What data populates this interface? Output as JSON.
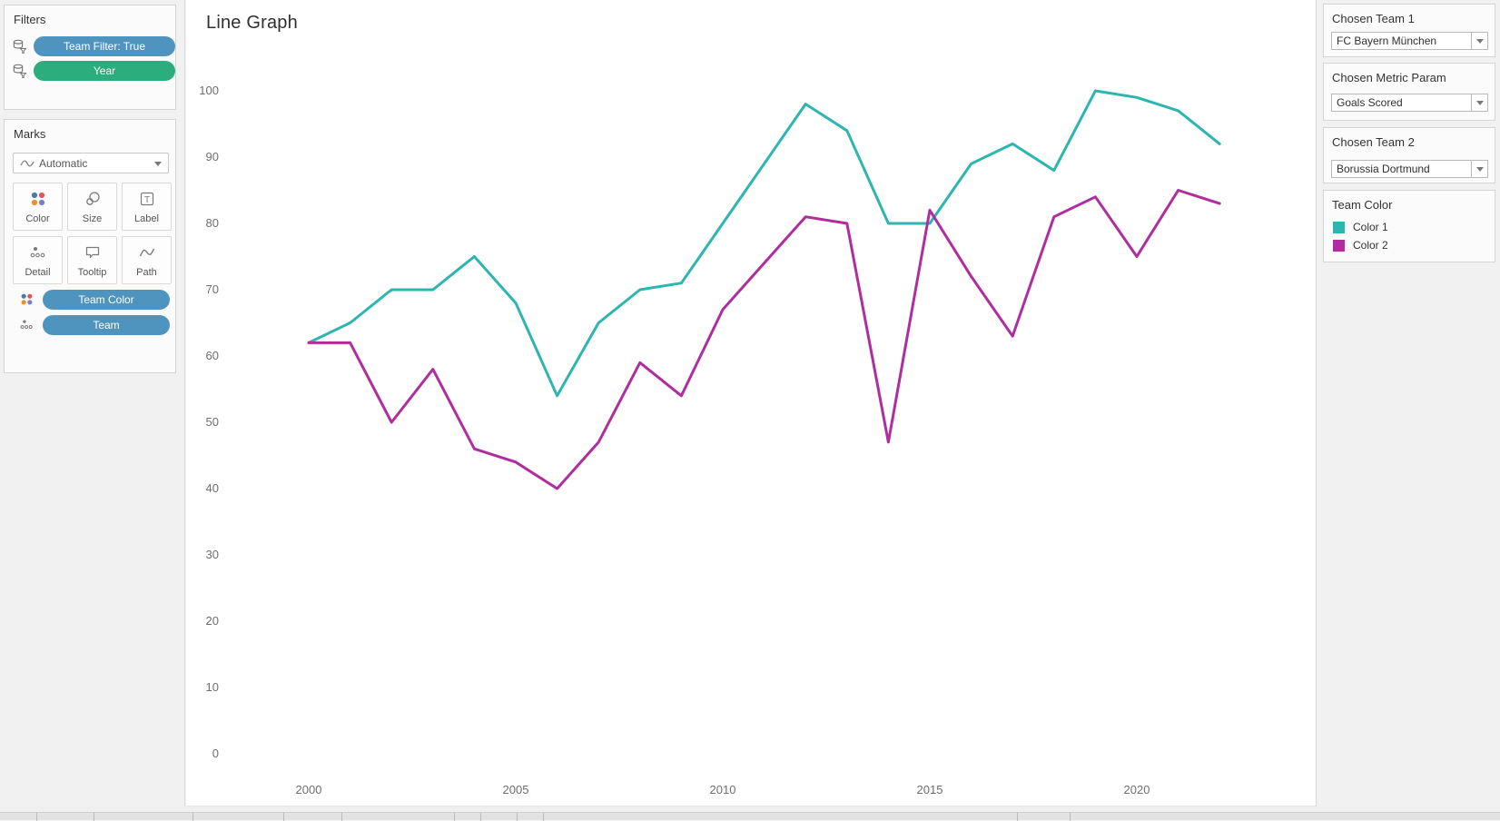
{
  "filters_card": {
    "title": "Filters",
    "pills": [
      {
        "label": "Team Filter: True",
        "color": "#4e94be",
        "icon": "datasource-filter-icon"
      },
      {
        "label": "Year",
        "color": "#2bad7d",
        "icon": "datasource-filter-icon"
      }
    ]
  },
  "marks_card": {
    "title": "Marks",
    "mark_type": "Automatic",
    "mark_type_icon": "line-squiggle-icon",
    "buttons": [
      {
        "label": "Color",
        "icon": "color-dots-icon"
      },
      {
        "label": "Size",
        "icon": "size-circles-icon"
      },
      {
        "label": "Label",
        "icon": "label-t-icon"
      },
      {
        "label": "Detail",
        "icon": "detail-dots-icon"
      },
      {
        "label": "Tooltip",
        "icon": "tooltip-bubble-icon"
      },
      {
        "label": "Path",
        "icon": "path-zigzag-icon"
      }
    ],
    "pills": [
      {
        "label": "Team Color",
        "color": "#4e94be",
        "icon": "color-dots-icon"
      },
      {
        "label": "Team",
        "color": "#4e94be",
        "icon": "detail-dots-icon"
      }
    ]
  },
  "params": [
    {
      "title": "Chosen Team 1",
      "value": "FC Bayern München"
    },
    {
      "title": "Chosen Metric Param",
      "value": "Goals Scored"
    },
    {
      "title": "Chosen Team 2",
      "value": "Borussia Dortmund"
    }
  ],
  "legend_card": {
    "title": "Team Color",
    "items": [
      {
        "label": "Color 1",
        "color": "#2cb5b1"
      },
      {
        "label": "Color 2",
        "color": "#b02da0"
      }
    ]
  },
  "chart_data": {
    "type": "line",
    "title": "Line Graph",
    "xlabel": "",
    "ylabel": "",
    "x": [
      2000,
      2001,
      2002,
      2003,
      2004,
      2005,
      2006,
      2007,
      2008,
      2009,
      2010,
      2011,
      2012,
      2013,
      2014,
      2015,
      2016,
      2017,
      2018,
      2019,
      2020,
      2021,
      2022
    ],
    "series": [
      {
        "name": "FC Bayern München",
        "legend": "Color 1",
        "color": "#2cb5b1",
        "values": [
          62,
          65,
          70,
          70,
          75,
          68,
          54,
          65,
          70,
          71,
          80,
          89,
          98,
          94,
          80,
          80,
          89,
          92,
          88,
          100,
          99,
          97,
          92
        ]
      },
      {
        "name": "Borussia Dortmund",
        "legend": "Color 2",
        "color": "#b02da0",
        "values": [
          62,
          62,
          50,
          58,
          46,
          44,
          40,
          47,
          59,
          54,
          67,
          74,
          81,
          80,
          47,
          82,
          72,
          63,
          81,
          84,
          75,
          85,
          83
        ]
      }
    ],
    "x_ticks": [
      2000,
      2005,
      2010,
      2015,
      2020
    ],
    "y_ticks": [
      0,
      10,
      20,
      30,
      40,
      50,
      60,
      70,
      80,
      90,
      100
    ],
    "ylim": [
      0,
      100
    ],
    "grid": false,
    "legend_position": "right"
  }
}
